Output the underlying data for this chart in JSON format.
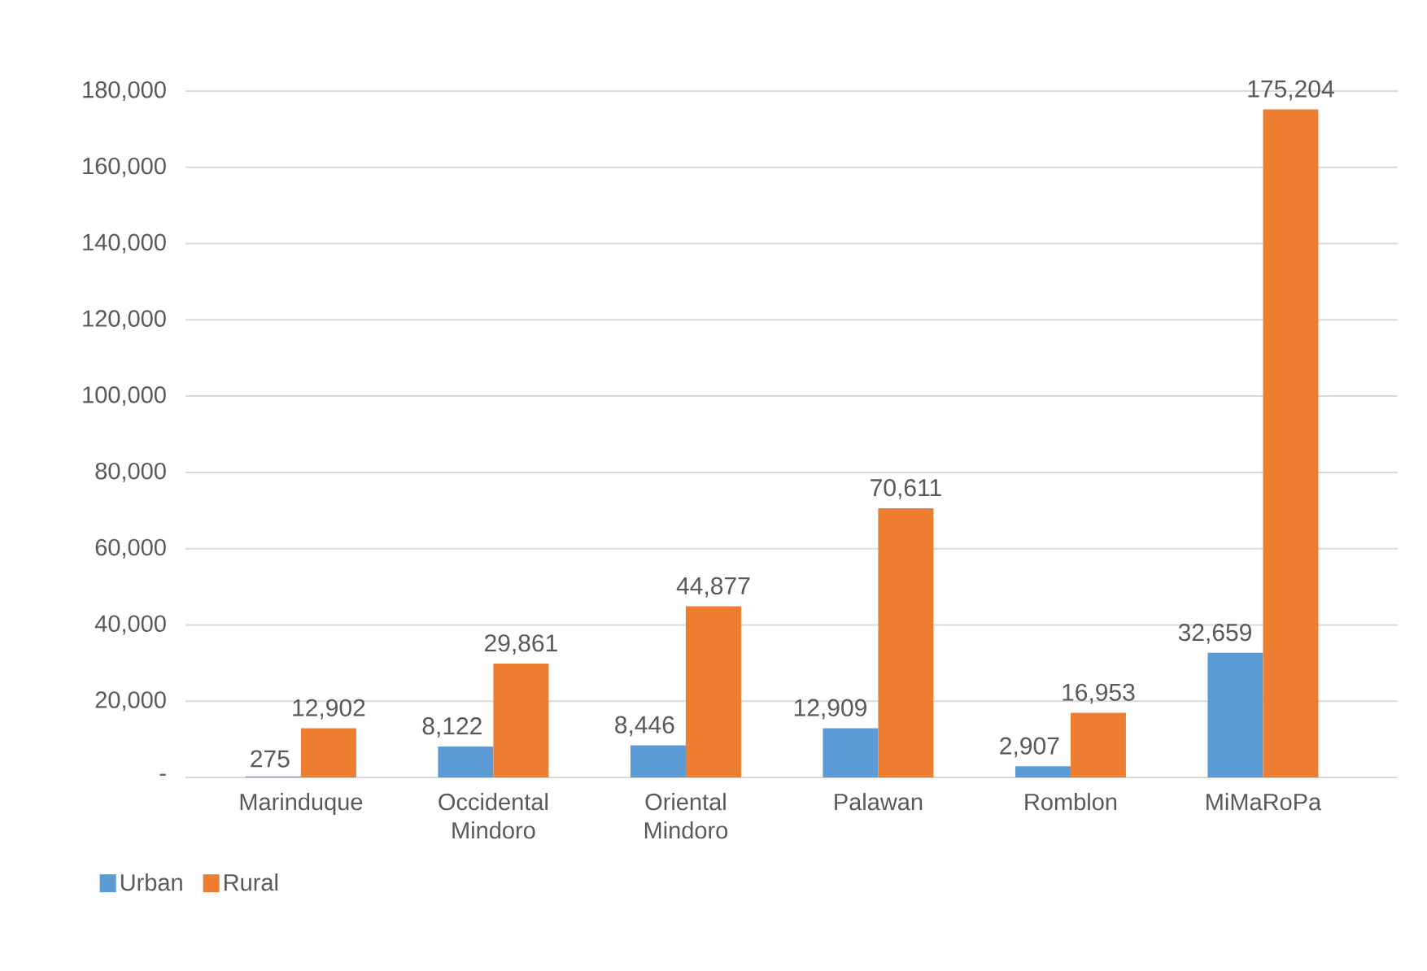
{
  "chart_data": {
    "type": "bar",
    "categories": [
      "Marinduque",
      "Occidental Mindoro",
      "Oriental Mindoro",
      "Palawan",
      "Romblon",
      "MiMaRoPa"
    ],
    "series": [
      {
        "name": "Urban",
        "color": "#5b9bd5",
        "values": [
          275,
          8122,
          8446,
          12909,
          2907,
          32659
        ],
        "value_labels": [
          "275",
          "8,122",
          "8,446",
          "12,909",
          "2,907",
          "32,659"
        ]
      },
      {
        "name": "Rural",
        "color": "#ed7d31",
        "values": [
          12902,
          29861,
          44877,
          70611,
          16953,
          175204
        ],
        "value_labels": [
          "12,902",
          "29,861",
          "44,877",
          "70,611",
          "16,953",
          "175,204"
        ]
      }
    ],
    "ylim": [
      0,
      180000
    ],
    "yticks": [
      {
        "value": 0,
        "label": "-"
      },
      {
        "value": 20000,
        "label": "20,000"
      },
      {
        "value": 40000,
        "label": "40,000"
      },
      {
        "value": 60000,
        "label": "60,000"
      },
      {
        "value": 80000,
        "label": "80,000"
      },
      {
        "value": 100000,
        "label": "100,000"
      },
      {
        "value": 120000,
        "label": "120,000"
      },
      {
        "value": 140000,
        "label": "140,000"
      },
      {
        "value": 160000,
        "label": "160,000"
      },
      {
        "value": 180000,
        "label": "180,000"
      }
    ],
    "grid": "y",
    "legend": "bottom left"
  }
}
